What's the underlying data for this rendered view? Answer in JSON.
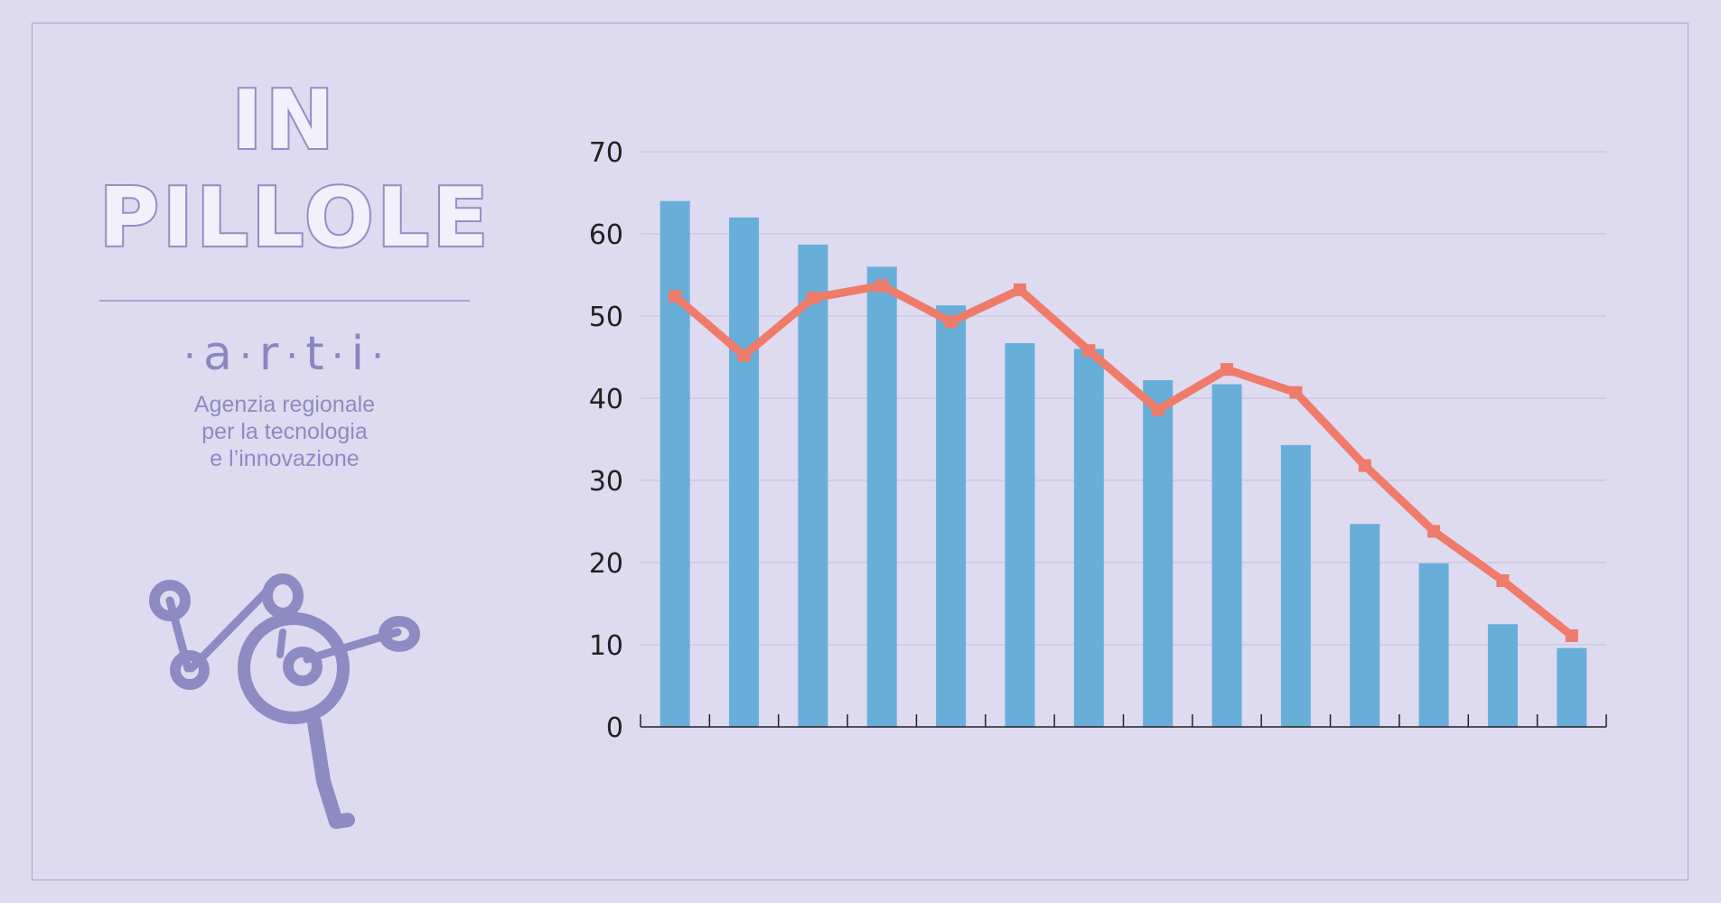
{
  "side_panel": {
    "title_lines": [
      "IN",
      "PILLOLE"
    ],
    "brand_letters": [
      "a",
      "r",
      "t",
      "i"
    ],
    "brand_sub_lines": [
      "Agenzia regionale",
      "per la tecnologia",
      "e l’innovazione"
    ]
  },
  "colors": {
    "background": "#dedaf0",
    "bar": "#67afd8",
    "line": "#ef7b6a",
    "brand": "#9090c4"
  },
  "chart_data": {
    "type": "bar",
    "title": "",
    "xlabel": "",
    "ylabel": "",
    "ylim": [
      0,
      70
    ],
    "yticks": [
      0,
      10,
      20,
      30,
      40,
      50,
      60,
      70
    ],
    "grid": true,
    "categories": [
      "",
      "",
      "",
      "",
      "",
      "",
      "",
      "",
      "",
      "",
      "",
      "",
      "",
      ""
    ],
    "series": [
      {
        "type": "bar",
        "values": [
          64,
          62,
          58.7,
          56,
          51.3,
          46.7,
          46,
          42.2,
          41.7,
          34.3,
          24.7,
          19.9,
          12.5,
          9.6
        ]
      },
      {
        "type": "line",
        "values": [
          52.4,
          45.2,
          52.2,
          53.7,
          49.3,
          53.2,
          45.8,
          38.6,
          43.5,
          40.7,
          31.8,
          23.8,
          17.8,
          11.1
        ]
      }
    ]
  }
}
